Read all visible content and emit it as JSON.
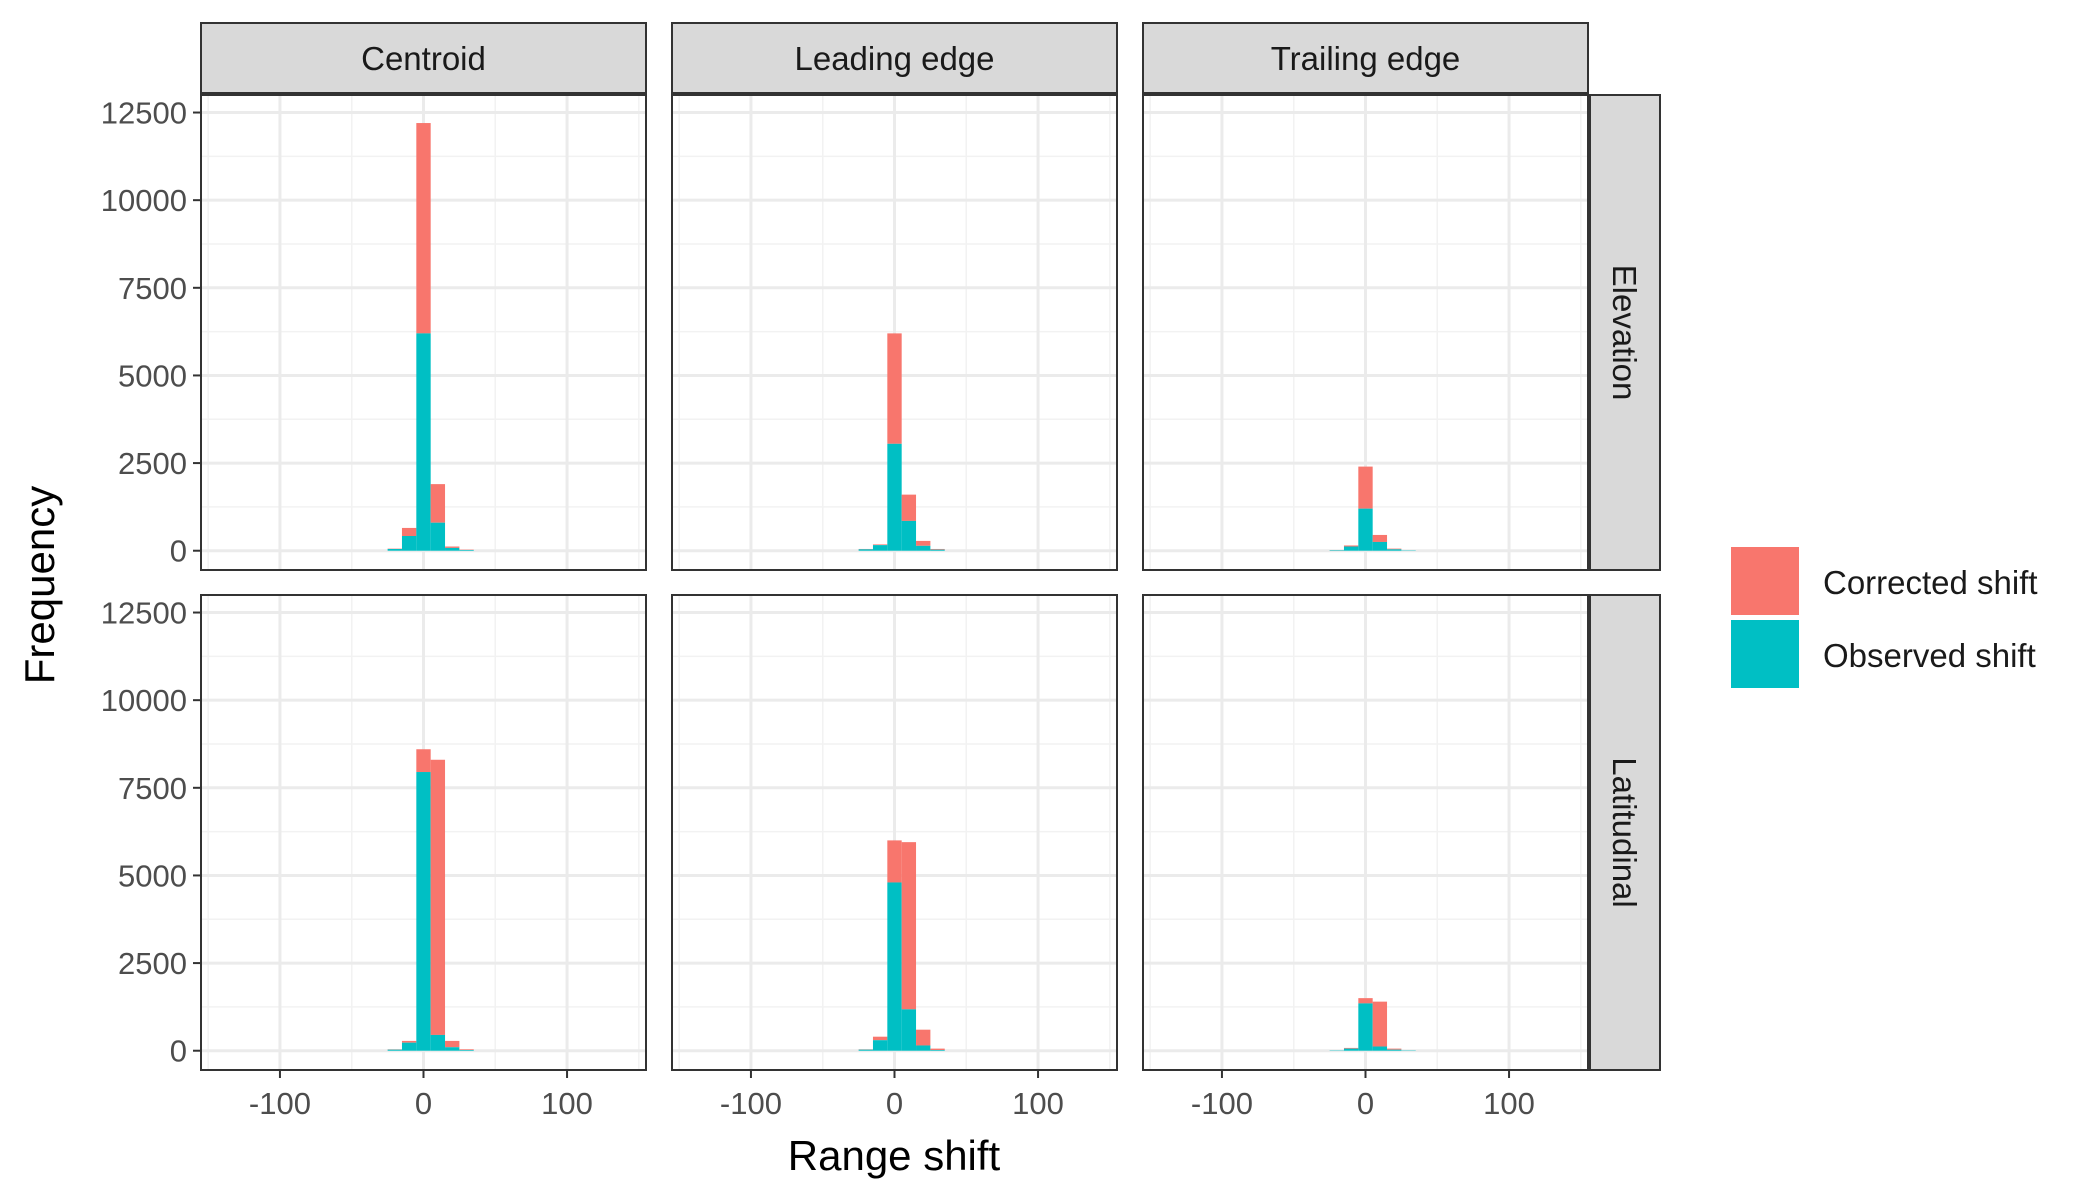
{
  "chart_data": {
    "type": "bar",
    "subtype": "stacked-histogram-faceted",
    "xlabel": "Range shift",
    "ylabel": "Frequency",
    "xlim": [
      -155,
      155
    ],
    "ylim": [
      -550,
      13000
    ],
    "x_ticks": [
      -100,
      0,
      100
    ],
    "x_tick_labels": [
      "-100",
      "0",
      "100"
    ],
    "y_ticks": [
      0,
      2500,
      5000,
      7500,
      10000,
      12500
    ],
    "y_tick_labels": [
      "0",
      "2500",
      "5000",
      "7500",
      "10000",
      "12500"
    ],
    "grid": true,
    "legend_position": "right",
    "colors": {
      "Corrected shift": "#F8766D",
      "Observed shift": "#00BFC4"
    },
    "col_facets": [
      "Centroid",
      "Leading edge",
      "Trailing edge"
    ],
    "row_facets": [
      "Elevation",
      "Latitudinal"
    ],
    "series_names": [
      "Corrected shift",
      "Observed shift"
    ],
    "bins": [
      -20,
      -10,
      0,
      10,
      20,
      30
    ],
    "bin_width": 10,
    "panels": [
      {
        "row": "Elevation",
        "col": "Centroid",
        "series": [
          {
            "name": "Corrected shift",
            "values": [
              60,
              650,
              12200,
              1900,
              120,
              30
            ]
          },
          {
            "name": "Observed shift",
            "values": [
              50,
              420,
              6200,
              800,
              80,
              20
            ]
          }
        ]
      },
      {
        "row": "Elevation",
        "col": "Leading edge",
        "series": [
          {
            "name": "Corrected shift",
            "values": [
              50,
              180,
              6200,
              1600,
              280,
              50
            ]
          },
          {
            "name": "Observed shift",
            "values": [
              40,
              160,
              3050,
              850,
              140,
              30
            ]
          }
        ]
      },
      {
        "row": "Elevation",
        "col": "Trailing edge",
        "series": [
          {
            "name": "Corrected shift",
            "values": [
              20,
              150,
              2400,
              450,
              60,
              10
            ]
          },
          {
            "name": "Observed shift",
            "values": [
              15,
              120,
              1200,
              250,
              40,
              10
            ]
          }
        ]
      },
      {
        "row": "Latitudinal",
        "col": "Centroid",
        "series": [
          {
            "name": "Corrected shift",
            "values": [
              40,
              280,
              8600,
              8300,
              280,
              40
            ]
          },
          {
            "name": "Observed shift",
            "values": [
              30,
              230,
              7950,
              450,
              100,
              20
            ]
          }
        ]
      },
      {
        "row": "Latitudinal",
        "col": "Leading edge",
        "series": [
          {
            "name": "Corrected shift",
            "values": [
              40,
              400,
              6000,
              5950,
              600,
              60
            ]
          },
          {
            "name": "Observed shift",
            "values": [
              30,
              300,
              4800,
              1180,
              150,
              20
            ]
          }
        ]
      },
      {
        "row": "Latitudinal",
        "col": "Trailing edge",
        "series": [
          {
            "name": "Corrected shift",
            "values": [
              10,
              80,
              1500,
              1400,
              60,
              10
            ]
          },
          {
            "name": "Observed shift",
            "values": [
              10,
              60,
              1350,
              120,
              30,
              10
            ]
          }
        ]
      }
    ]
  }
}
